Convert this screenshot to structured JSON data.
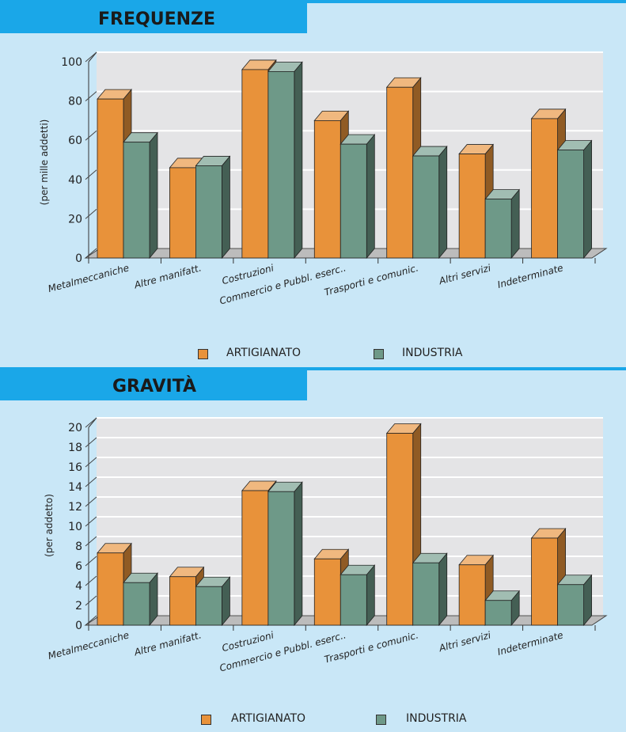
{
  "colors": {
    "artigianato": "#e8923a",
    "industria": "#6e9988",
    "header": "#1aa7e8",
    "background": "#c9e7f7"
  },
  "chart_data": [
    {
      "type": "bar",
      "title": "FREQUENZE",
      "ylabel": "(per mille addetti)",
      "ylim": [
        0,
        100
      ],
      "yticks": [
        0,
        20,
        40,
        60,
        80,
        100
      ],
      "grid": true,
      "legend": "bottom",
      "categories": [
        "Metalmeccaniche",
        "Altre manifatt.",
        "Costruzioni",
        "Commercio e Pubbl. eserc..",
        "Trasporti e comunic.",
        "Altri servizi",
        "Indeterminate"
      ],
      "series": [
        {
          "name": "ARTIGIANATO",
          "values": [
            81,
            46,
            96,
            70,
            87,
            53,
            71
          ]
        },
        {
          "name": "INDUSTRIA",
          "values": [
            59,
            47,
            95,
            58,
            52,
            30,
            55
          ]
        }
      ]
    },
    {
      "type": "bar",
      "title": "GRAVITÀ",
      "ylabel": "(per addetto)",
      "ylim": [
        0,
        20
      ],
      "yticks": [
        0,
        2,
        4,
        6,
        8,
        10,
        12,
        14,
        16,
        18,
        20
      ],
      "grid": true,
      "legend": "bottom",
      "categories": [
        "Metalmeccaniche",
        "Altre manifatt.",
        "Costruzioni",
        "Commercio e Pubbl. eserc..",
        "Trasporti e comunic.",
        "Altri servizi",
        "Indeterminate"
      ],
      "series": [
        {
          "name": "ARTIGIANATO",
          "values": [
            7.3,
            4.9,
            13.6,
            6.7,
            19.4,
            6.1,
            8.8
          ]
        },
        {
          "name": "INDUSTRIA",
          "values": [
            4.3,
            3.9,
            13.5,
            5.1,
            6.3,
            2.5,
            4.1
          ]
        }
      ]
    }
  ]
}
